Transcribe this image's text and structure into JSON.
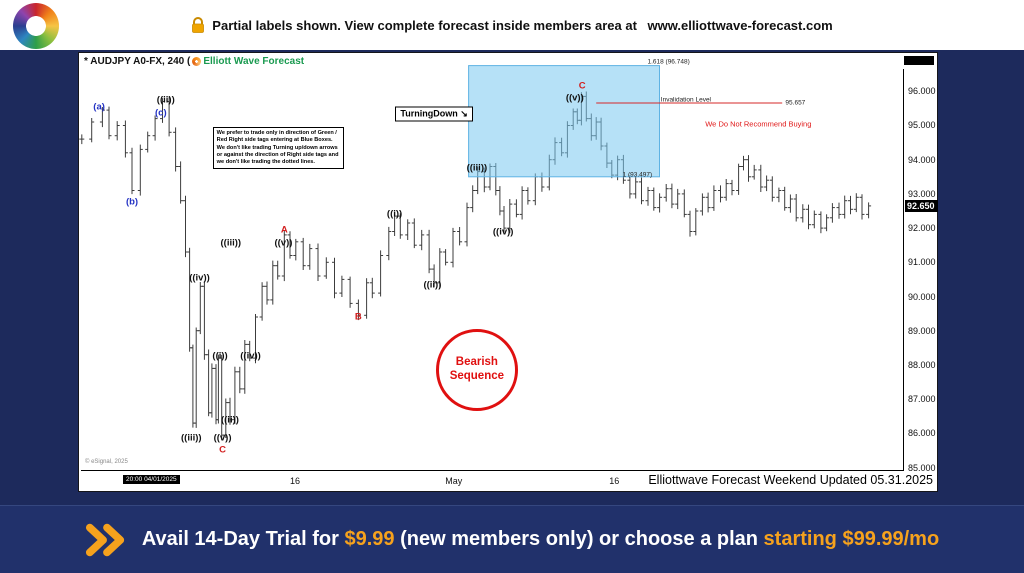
{
  "top_banner": {
    "text_prefix": "Partial labels shown. View complete forecast inside members area at ",
    "url": "www.elliottwave-forecast.com"
  },
  "chart": {
    "title": "* AUDJPY A0-FX, 240 (",
    "brand": "Elliott Wave Forecast",
    "price_badge": "92.650",
    "timestamp_badge": "20:00 04/01/2025",
    "copyright": "© eSignal, 2025",
    "footer_note": "Elliottwave Forecast Weekend Updated 05.31.2025"
  },
  "chart_data": {
    "type": "candlestick",
    "symbol": "AUDJPY",
    "timeframe": "240",
    "last_price": 92.65,
    "price_top": 96.65,
    "price_bottom": 84.9,
    "y_ticks": [
      96,
      95,
      94,
      93,
      92,
      91,
      90,
      89,
      88,
      87,
      86,
      85
    ],
    "x_ticks": [
      {
        "label": "16",
        "t": 0.26
      },
      {
        "label": "May",
        "t": 0.453
      },
      {
        "label": "16",
        "t": 0.648
      }
    ],
    "path": [
      [
        0.001,
        94.6
      ],
      [
        0.013,
        95.1
      ],
      [
        0.026,
        95.45
      ],
      [
        0.034,
        94.7
      ],
      [
        0.044,
        95.0
      ],
      [
        0.054,
        94.2
      ],
      [
        0.062,
        93.1
      ],
      [
        0.072,
        94.3
      ],
      [
        0.081,
        94.7
      ],
      [
        0.09,
        95.2
      ],
      [
        0.099,
        95.7
      ],
      [
        0.107,
        94.8
      ],
      [
        0.115,
        93.8
      ],
      [
        0.121,
        92.8
      ],
      [
        0.127,
        91.3
      ],
      [
        0.132,
        88.5
      ],
      [
        0.136,
        86.3
      ],
      [
        0.14,
        89.0
      ],
      [
        0.145,
        90.3
      ],
      [
        0.15,
        88.3
      ],
      [
        0.155,
        86.6
      ],
      [
        0.159,
        87.9
      ],
      [
        0.164,
        86.4
      ],
      [
        0.167,
        88.2
      ],
      [
        0.171,
        85.95
      ],
      [
        0.176,
        86.9
      ],
      [
        0.181,
        86.4
      ],
      [
        0.187,
        87.8
      ],
      [
        0.193,
        87.3
      ],
      [
        0.199,
        88.6
      ],
      [
        0.205,
        88.2
      ],
      [
        0.212,
        89.4
      ],
      [
        0.22,
        90.3
      ],
      [
        0.226,
        89.9
      ],
      [
        0.233,
        90.9
      ],
      [
        0.239,
        90.6
      ],
      [
        0.247,
        91.8
      ],
      [
        0.254,
        91.2
      ],
      [
        0.261,
        91.6
      ],
      [
        0.27,
        90.9
      ],
      [
        0.278,
        91.4
      ],
      [
        0.288,
        90.6
      ],
      [
        0.298,
        91.0
      ],
      [
        0.308,
        90.1
      ],
      [
        0.317,
        90.5
      ],
      [
        0.327,
        89.8
      ],
      [
        0.337,
        89.45
      ],
      [
        0.347,
        90.4
      ],
      [
        0.354,
        90.1
      ],
      [
        0.364,
        91.2
      ],
      [
        0.374,
        91.9
      ],
      [
        0.381,
        92.35
      ],
      [
        0.388,
        91.8
      ],
      [
        0.397,
        92.15
      ],
      [
        0.405,
        91.5
      ],
      [
        0.414,
        91.8
      ],
      [
        0.423,
        90.8
      ],
      [
        0.429,
        90.4
      ],
      [
        0.436,
        91.3
      ],
      [
        0.443,
        91.0
      ],
      [
        0.452,
        91.9
      ],
      [
        0.46,
        91.6
      ],
      [
        0.469,
        92.6
      ],
      [
        0.476,
        93.1
      ],
      [
        0.482,
        93.65
      ],
      [
        0.49,
        93.2
      ],
      [
        0.497,
        93.8
      ],
      [
        0.504,
        93.1
      ],
      [
        0.509,
        92.5
      ],
      [
        0.514,
        92.0
      ],
      [
        0.521,
        92.7
      ],
      [
        0.529,
        92.4
      ],
      [
        0.536,
        93.1
      ],
      [
        0.543,
        92.8
      ],
      [
        0.552,
        93.5
      ],
      [
        0.56,
        93.2
      ],
      [
        0.569,
        94.0
      ],
      [
        0.576,
        94.5
      ],
      [
        0.584,
        94.2
      ],
      [
        0.591,
        95.0
      ],
      [
        0.598,
        95.4
      ],
      [
        0.603,
        95.15
      ],
      [
        0.608,
        95.85
      ],
      [
        0.614,
        95.2
      ],
      [
        0.62,
        94.7
      ],
      [
        0.626,
        95.1
      ],
      [
        0.632,
        94.4
      ],
      [
        0.639,
        93.9
      ],
      [
        0.645,
        93.55
      ],
      [
        0.652,
        94.0
      ],
      [
        0.659,
        93.4
      ],
      [
        0.667,
        93.0
      ],
      [
        0.674,
        93.35
      ],
      [
        0.681,
        92.8
      ],
      [
        0.689,
        93.1
      ],
      [
        0.696,
        92.6
      ],
      [
        0.703,
        92.9
      ],
      [
        0.711,
        93.15
      ],
      [
        0.718,
        92.7
      ],
      [
        0.725,
        93.0
      ],
      [
        0.733,
        92.4
      ],
      [
        0.74,
        91.9
      ],
      [
        0.747,
        92.5
      ],
      [
        0.755,
        92.9
      ],
      [
        0.762,
        92.6
      ],
      [
        0.769,
        93.1
      ],
      [
        0.777,
        92.9
      ],
      [
        0.784,
        93.3
      ],
      [
        0.791,
        93.1
      ],
      [
        0.799,
        93.8
      ],
      [
        0.805,
        94.0
      ],
      [
        0.811,
        93.5
      ],
      [
        0.818,
        93.7
      ],
      [
        0.826,
        93.2
      ],
      [
        0.833,
        93.4
      ],
      [
        0.84,
        92.9
      ],
      [
        0.848,
        93.1
      ],
      [
        0.855,
        92.6
      ],
      [
        0.862,
        92.85
      ],
      [
        0.869,
        92.3
      ],
      [
        0.877,
        92.55
      ],
      [
        0.884,
        92.1
      ],
      [
        0.891,
        92.4
      ],
      [
        0.899,
        92.0
      ],
      [
        0.906,
        92.3
      ],
      [
        0.913,
        92.6
      ],
      [
        0.921,
        92.4
      ],
      [
        0.928,
        92.8
      ],
      [
        0.935,
        92.55
      ],
      [
        0.942,
        92.9
      ],
      [
        0.949,
        92.4
      ],
      [
        0.957,
        92.65
      ]
    ],
    "wave_labels": [
      {
        "text": "(a)",
        "t": 0.022,
        "p": 95.55,
        "color": "blue"
      },
      {
        "text": "((ii))",
        "t": 0.103,
        "p": 95.75,
        "color": "black"
      },
      {
        "text": "(c)",
        "t": 0.097,
        "p": 95.37,
        "color": "blue"
      },
      {
        "text": "(b)",
        "t": 0.062,
        "p": 92.75,
        "color": "blue"
      },
      {
        "text": "((iv))",
        "t": 0.144,
        "p": 90.55,
        "color": "black"
      },
      {
        "text": "((iii))",
        "t": 0.182,
        "p": 91.57,
        "color": "black"
      },
      {
        "text": "A",
        "t": 0.247,
        "p": 91.95,
        "color": "red"
      },
      {
        "text": "((v))",
        "t": 0.246,
        "p": 91.55,
        "color": "black"
      },
      {
        "text": "((i))",
        "t": 0.169,
        "p": 88.25,
        "color": "black"
      },
      {
        "text": "((iv))",
        "t": 0.206,
        "p": 88.25,
        "color": "black"
      },
      {
        "text": "((iii))",
        "t": 0.134,
        "p": 85.85,
        "color": "black"
      },
      {
        "text": "((v))",
        "t": 0.172,
        "p": 85.85,
        "color": "black"
      },
      {
        "text": "((ii))",
        "t": 0.181,
        "p": 86.4,
        "color": "black"
      },
      {
        "text": "C",
        "t": 0.172,
        "p": 85.5,
        "color": "red"
      },
      {
        "text": "B",
        "t": 0.337,
        "p": 89.4,
        "color": "red"
      },
      {
        "text": "((i))",
        "t": 0.381,
        "p": 92.4,
        "color": "black"
      },
      {
        "text": "((ii))",
        "t": 0.427,
        "p": 90.35,
        "color": "black"
      },
      {
        "text": "((iii))",
        "t": 0.481,
        "p": 93.75,
        "color": "black"
      },
      {
        "text": "((iv))",
        "t": 0.513,
        "p": 91.9,
        "color": "black"
      },
      {
        "text": "((v))",
        "t": 0.6,
        "p": 95.8,
        "color": "black"
      },
      {
        "text": "C",
        "t": 0.609,
        "p": 96.15,
        "color": "red"
      }
    ],
    "blue_box": {
      "t1": 0.471,
      "t2": 0.703,
      "p_top": 96.748,
      "p_bottom": 93.497
    },
    "fib_labels": [
      {
        "text": "1.618 (96.748)",
        "t": 0.714,
        "p": 96.86
      },
      {
        "text": "1 (93.497)",
        "t": 0.676,
        "p": 93.56
      }
    ],
    "invalidation": {
      "label": "Invalidation Level",
      "value": "95.657",
      "price": 95.657,
      "t1": 0.626,
      "t2": 0.852,
      "label_t": 0.735,
      "label_p": 95.73,
      "value_t": 0.868,
      "value_p": 95.66
    },
    "warning": {
      "text": "We Do Not Recommend Buying",
      "t": 0.823,
      "p": 95.05
    },
    "turning_down": {
      "text": "TurningDown ↘",
      "t": 0.382,
      "p": 95.33
    },
    "disclaimer": {
      "text": "We prefer to trade only in direction of Green / Red Right side tags entering at Blue Boxes. We don't like trading Turning up/down arrows or against the direction of Right side tags and we don't like trading the dotted lines.",
      "t": 0.16,
      "p": 94.95
    },
    "bearish_badge": {
      "line1": "Bearish",
      "line2": "Sequence",
      "t": 0.481,
      "p": 87.85
    }
  },
  "bottom_banner": {
    "parts": [
      {
        "text": "Avail 14-Day Trial for ",
        "highlight": false
      },
      {
        "text": "$9.99",
        "highlight": true
      },
      {
        "text": " (new members only) or choose a plan ",
        "highlight": false
      },
      {
        "text": "starting $99.99/mo",
        "highlight": true
      }
    ]
  },
  "icons": {
    "lock": "lock-shape (gold)",
    "chevrons": "double right chevron",
    "turning_down_arrow": "↘"
  },
  "colors": {
    "navy_bg": "#1d2a5c",
    "banner_bg": "#21316b",
    "accent_orange": "#f6a21d",
    "blue_box_fill": "#7ac8f1",
    "brand_green": "#1a9a50",
    "label_blue": "#2433c4",
    "alert_red": "#e01818"
  }
}
